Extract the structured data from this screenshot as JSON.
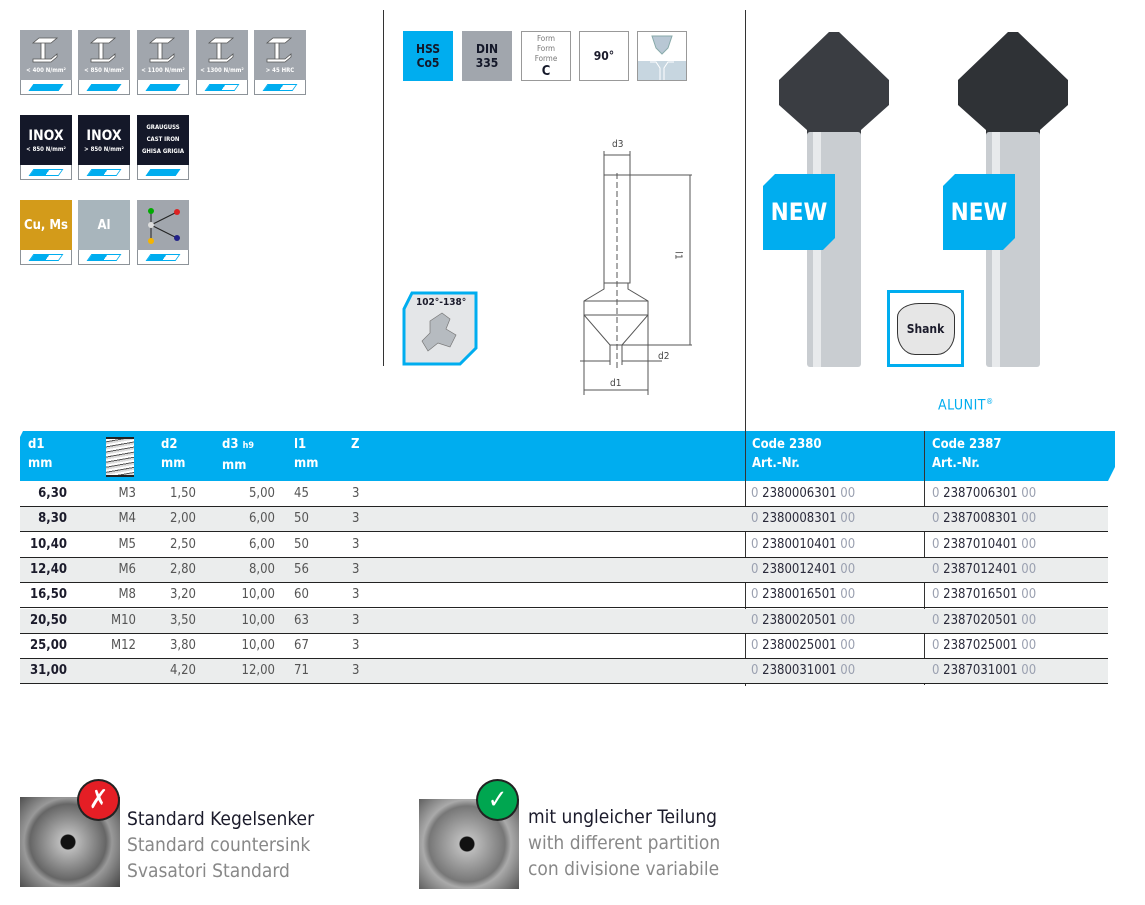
{
  "materials": {
    "steel": [
      {
        "label": "< 400 N/mm²",
        "level": 1
      },
      {
        "label": "< 850 N/mm²",
        "level": 1
      },
      {
        "label": "< 1100 N/mm²",
        "level": 1
      },
      {
        "label": "< 1300 N/mm²",
        "level": 0.5
      },
      {
        "label": "> 45 HRC",
        "level": 0.5
      }
    ],
    "inox": [
      {
        "title": "INOX",
        "label": "< 850 N/mm²",
        "level": 0.5
      },
      {
        "title": "INOX",
        "label": "> 850 N/mm²",
        "level": 0.5
      }
    ],
    "cast_iron": {
      "lines": [
        "GRAUGUSS",
        "CAST IRON",
        "GHISA GRIGIA"
      ],
      "level": 1
    },
    "cu_ms": {
      "label": "Cu, Ms",
      "color": "#d39b1a",
      "level": 0.5
    },
    "al": {
      "label": "Al",
      "color": "#a8b5bc",
      "level": 0.5
    },
    "plastics": {
      "icon": "molecule-icon",
      "level": 0.5
    }
  },
  "badges": {
    "material": [
      "HSS",
      "Co5"
    ],
    "din": [
      "DIN",
      "335"
    ],
    "form": [
      "Form",
      "Form",
      "Forme",
      "C"
    ],
    "angle": "90°"
  },
  "drawing": {
    "d3": "d3",
    "l1": "l1",
    "d2": "d2",
    "d1": "d1",
    "flute_angle": "102°-138°"
  },
  "product": {
    "new_label": "NEW",
    "shank_label": "Shank",
    "brand": "ALUNIT",
    "brand_mark": "®"
  },
  "table": {
    "headers": {
      "d1": [
        "d1",
        "mm"
      ],
      "thread_icon": "thread-icon",
      "d2": [
        "d2",
        "mm"
      ],
      "d3": [
        "d3",
        "h9",
        "mm"
      ],
      "l1": [
        "l1",
        "mm"
      ],
      "z": "Z",
      "code_a": [
        "Code 2380",
        "Art.-Nr."
      ],
      "code_b": [
        "Code 2387",
        "Art.-Nr."
      ]
    },
    "rows": [
      {
        "d1": "6,30",
        "m": "M3",
        "d2": "1,50",
        "d3": "5,00",
        "l1": "45",
        "z": "3",
        "a": "2380006301",
        "b": "2387006301"
      },
      {
        "d1": "8,30",
        "m": "M4",
        "d2": "2,00",
        "d3": "6,00",
        "l1": "50",
        "z": "3",
        "a": "2380008301",
        "b": "2387008301"
      },
      {
        "d1": "10,40",
        "m": "M5",
        "d2": "2,50",
        "d3": "6,00",
        "l1": "50",
        "z": "3",
        "a": "2380010401",
        "b": "2387010401"
      },
      {
        "d1": "12,40",
        "m": "M6",
        "d2": "2,80",
        "d3": "8,00",
        "l1": "56",
        "z": "3",
        "a": "2380012401",
        "b": "2387012401"
      },
      {
        "d1": "16,50",
        "m": "M8",
        "d2": "3,20",
        "d3": "10,00",
        "l1": "60",
        "z": "3",
        "a": "2380016501",
        "b": "2387016501"
      },
      {
        "d1": "20,50",
        "m": "M10",
        "d2": "3,50",
        "d3": "10,00",
        "l1": "63",
        "z": "3",
        "a": "2380020501",
        "b": "2387020501"
      },
      {
        "d1": "25,00",
        "m": "M12",
        "d2": "3,80",
        "d3": "10,00",
        "l1": "67",
        "z": "3",
        "a": "2380025001",
        "b": "2387025001"
      },
      {
        "d1": "31,00",
        "m": "",
        "d2": "4,20",
        "d3": "12,00",
        "l1": "71",
        "z": "3",
        "a": "2380031001",
        "b": "2387031001"
      }
    ],
    "art_prefix": "0",
    "art_suffix": "00"
  },
  "comparison": {
    "bad": {
      "icon": "cross-icon",
      "lines": [
        "Standard Kegelsenker",
        "Standard countersink",
        "Svasatori Standard"
      ]
    },
    "good": {
      "icon": "check-icon",
      "lines": [
        "mit ungleicher Teilung",
        "with different partition",
        "con divisione variabile"
      ]
    }
  }
}
